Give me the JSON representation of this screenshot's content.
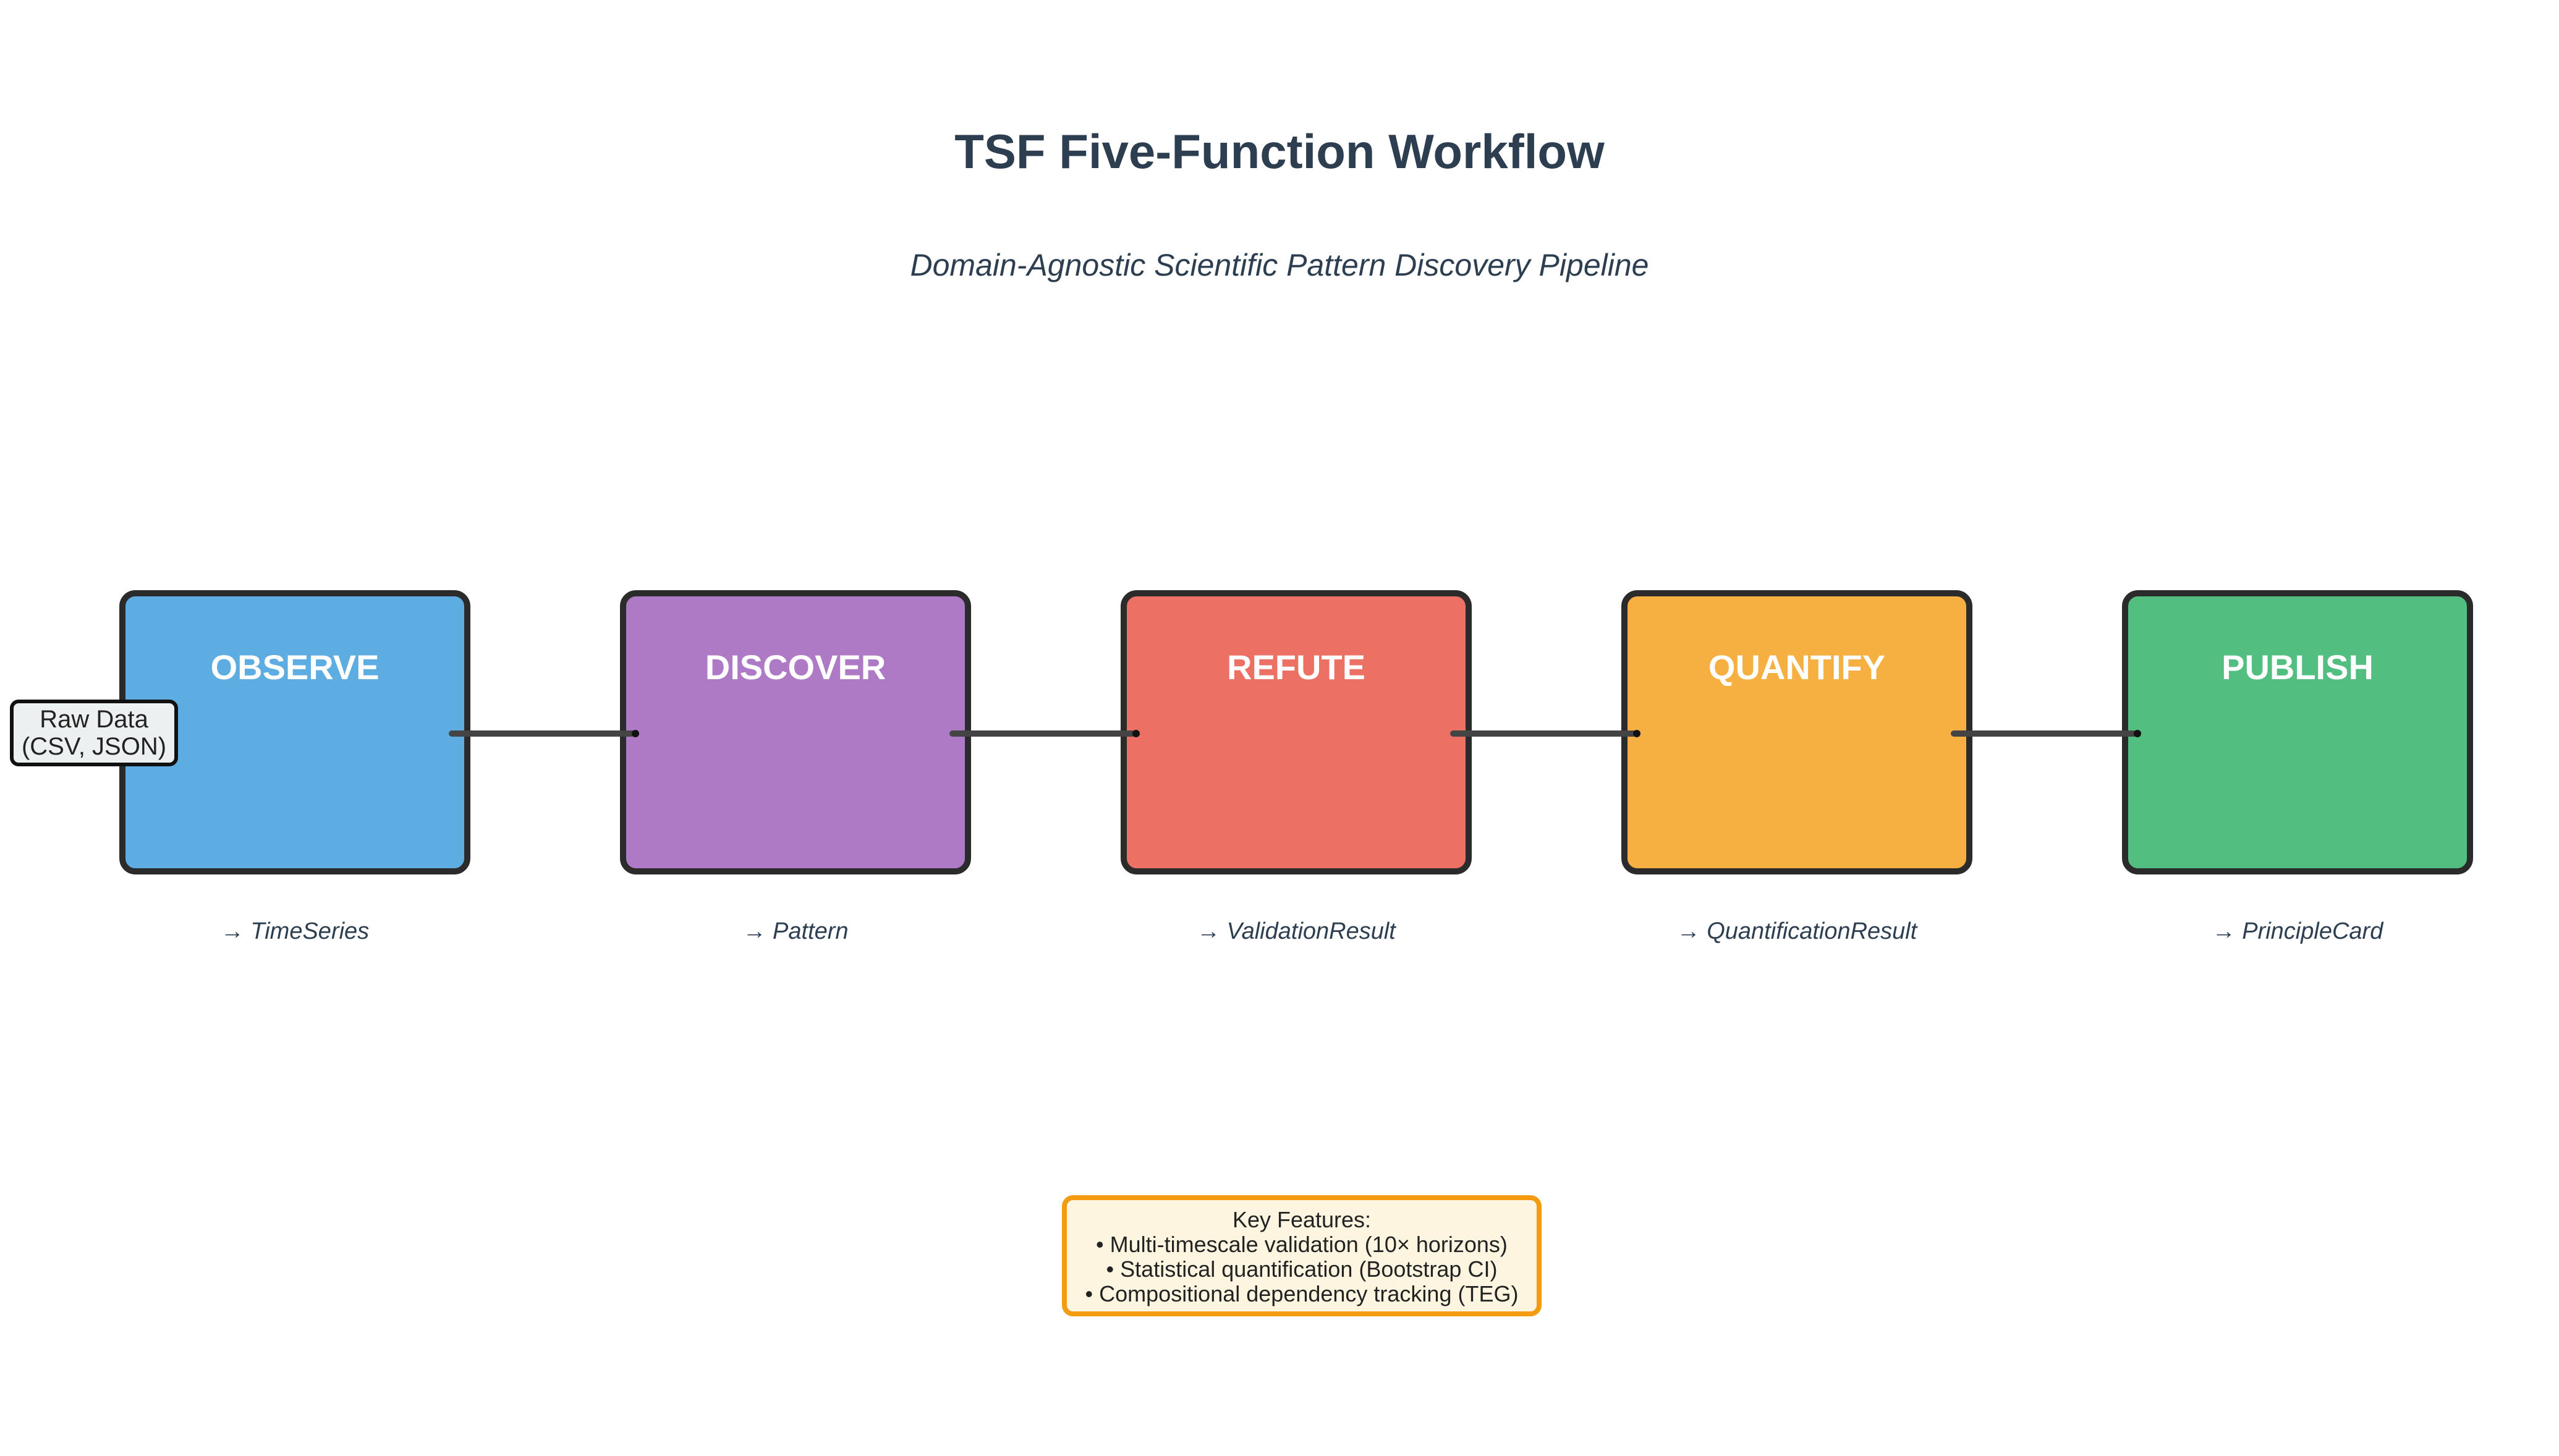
{
  "title": "TSF Five-Function Workflow",
  "subtitle": "Domain-Agnostic Scientific Pattern Discovery Pipeline",
  "input": {
    "line1": "Raw Data",
    "line2": "(CSV, JSON)"
  },
  "stages": [
    {
      "label": "OBSERVE",
      "output": "→ TimeSeries",
      "color": "#5dade2"
    },
    {
      "label": "DISCOVER",
      "output": "→ Pattern",
      "color": "#af7ac5"
    },
    {
      "label": "REFUTE",
      "output": "→ ValidationResult",
      "color": "#ec7063"
    },
    {
      "label": "QUANTIFY",
      "output": "→ QuantificationResult",
      "color": "#f5b041"
    },
    {
      "label": "PUBLISH",
      "output": "→ PrincipleCard",
      "color": "#52be80"
    }
  ],
  "key_features": {
    "heading": "Key Features:",
    "items": [
      "• Multi-timescale validation (10× horizons)",
      "• Statistical quantification (Bootstrap CI)",
      "• Compositional dependency tracking (TEG)"
    ]
  },
  "colors": {
    "text": "#2c3e50",
    "box_border": "#2b2b2b",
    "connector": "#444444",
    "features_border": "#f39c12",
    "features_fill": "#fef5e1"
  }
}
